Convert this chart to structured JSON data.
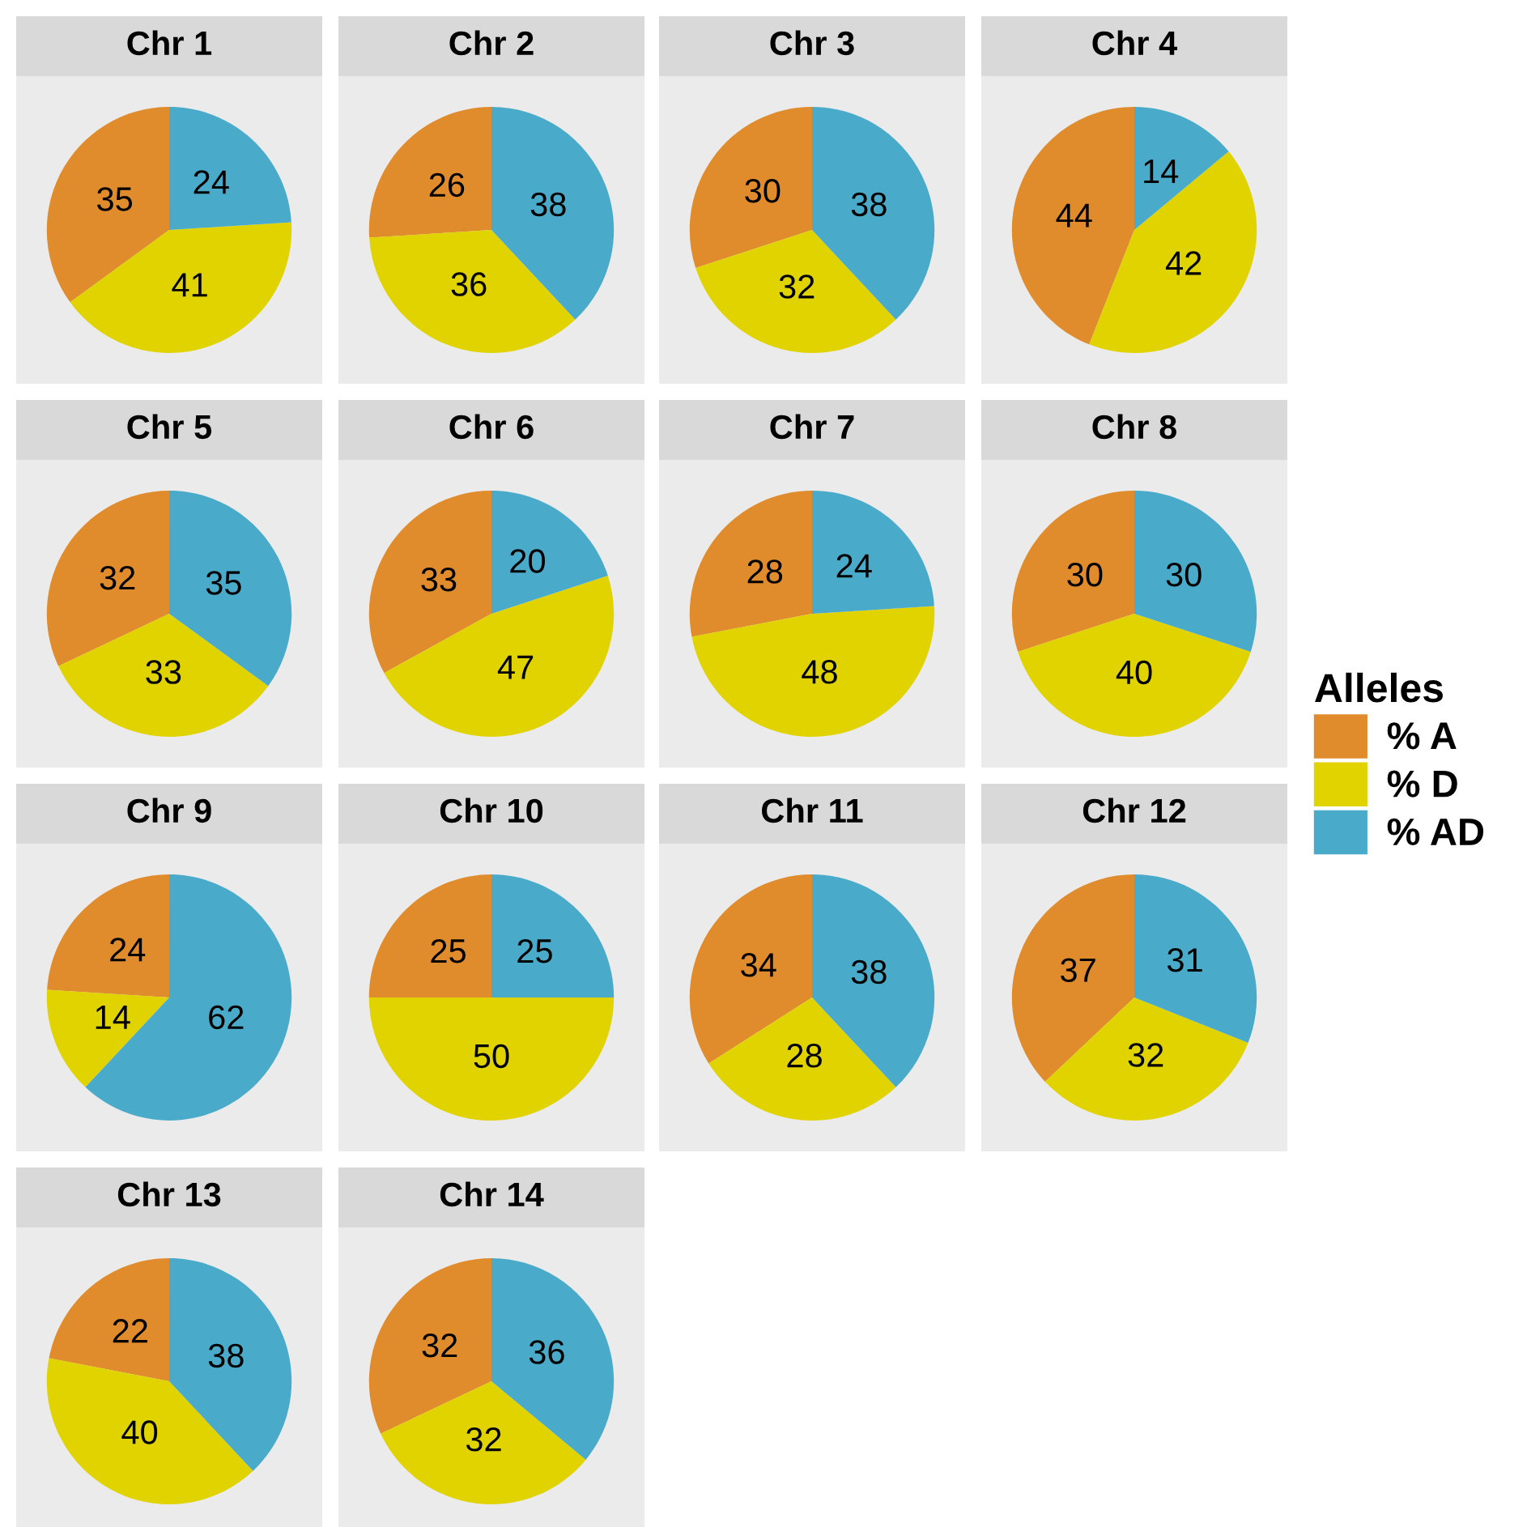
{
  "chart_data": [
    {
      "type": "pie",
      "title": "Chr 1",
      "categories": [
        "% A",
        "% D",
        "% AD"
      ],
      "values": [
        35,
        41,
        24
      ],
      "colors": [
        "#e08b2c",
        "#e0d300",
        "#49abc9"
      ],
      "data_labels": true,
      "legend": "right",
      "legend_title": "Alleles"
    },
    {
      "type": "pie",
      "title": "Chr 2",
      "categories": [
        null,
        null,
        null
      ],
      "values": [
        26,
        36,
        38
      ],
      "colors": [
        "#e08b2c",
        "#e0d300",
        "#49abc9"
      ],
      "data_labels": true
    },
    {
      "type": "pie",
      "title": "Chr 3",
      "categories": [
        null,
        null,
        null
      ],
      "values": [
        30,
        32,
        38
      ],
      "colors": [
        "#e08b2c",
        "#e0d300",
        "#49abc9"
      ],
      "data_labels": true
    },
    {
      "type": "pie",
      "title": "Chr 4",
      "categories": [
        null,
        null,
        null
      ],
      "values": [
        44,
        42,
        14
      ],
      "colors": [
        "#e08b2c",
        "#e0d300",
        "#49abc9"
      ],
      "data_labels": true
    },
    {
      "type": "pie",
      "title": "Chr 5",
      "categories": [
        null,
        null,
        null
      ],
      "values": [
        32,
        33,
        35
      ],
      "colors": [
        "#e08b2c",
        "#e0d300",
        "#49abc9"
      ],
      "data_labels": true
    },
    {
      "type": "pie",
      "title": "Chr 6",
      "categories": [
        null,
        null,
        null
      ],
      "values": [
        33,
        47,
        20
      ],
      "colors": [
        "#e08b2c",
        "#e0d300",
        "#49abc9"
      ],
      "data_labels": true
    },
    {
      "type": "pie",
      "title": "Chr 7",
      "categories": [
        null,
        null,
        null
      ],
      "values": [
        28,
        48,
        24
      ],
      "colors": [
        "#e08b2c",
        "#e0d300",
        "#49abc9"
      ],
      "data_labels": true
    },
    {
      "type": "pie",
      "title": "Chr 8",
      "categories": [
        null,
        null,
        null
      ],
      "values": [
        30,
        40,
        30
      ],
      "colors": [
        "#e08b2c",
        "#e0d300",
        "#49abc9"
      ],
      "data_labels": true
    },
    {
      "type": "pie",
      "title": "Chr 9",
      "categories": [
        null,
        null,
        null
      ],
      "values": [
        24,
        14,
        62
      ],
      "colors": [
        "#e08b2c",
        "#e0d300",
        "#49abc9"
      ],
      "data_labels": true
    },
    {
      "type": "pie",
      "title": "Chr 10",
      "categories": [
        null,
        null,
        null
      ],
      "values": [
        25,
        50,
        25
      ],
      "colors": [
        "#e08b2c",
        "#e0d300",
        "#49abc9"
      ],
      "data_labels": true
    },
    {
      "type": "pie",
      "title": "Chr 11",
      "categories": [
        null,
        null,
        null
      ],
      "values": [
        34,
        28,
        38
      ],
      "colors": [
        "#e08b2c",
        "#e0d300",
        "#49abc9"
      ],
      "data_labels": true
    },
    {
      "type": "pie",
      "title": "Chr 12",
      "categories": [
        null,
        null,
        null
      ],
      "values": [
        37,
        32,
        31
      ],
      "colors": [
        "#e08b2c",
        "#e0d300",
        "#49abc9"
      ],
      "data_labels": true
    },
    {
      "type": "pie",
      "title": "Chr 13",
      "categories": [
        null,
        null,
        null
      ],
      "values": [
        22,
        40,
        38
      ],
      "colors": [
        "#e08b2c",
        "#e0d300",
        "#49abc9"
      ],
      "data_labels": true
    },
    {
      "type": "pie",
      "title": "Chr 14",
      "categories": [
        null,
        null,
        null
      ],
      "values": [
        32,
        32,
        36
      ],
      "colors": [
        "#e08b2c",
        "#e0d300",
        "#49abc9"
      ],
      "data_labels": true
    }
  ]
}
